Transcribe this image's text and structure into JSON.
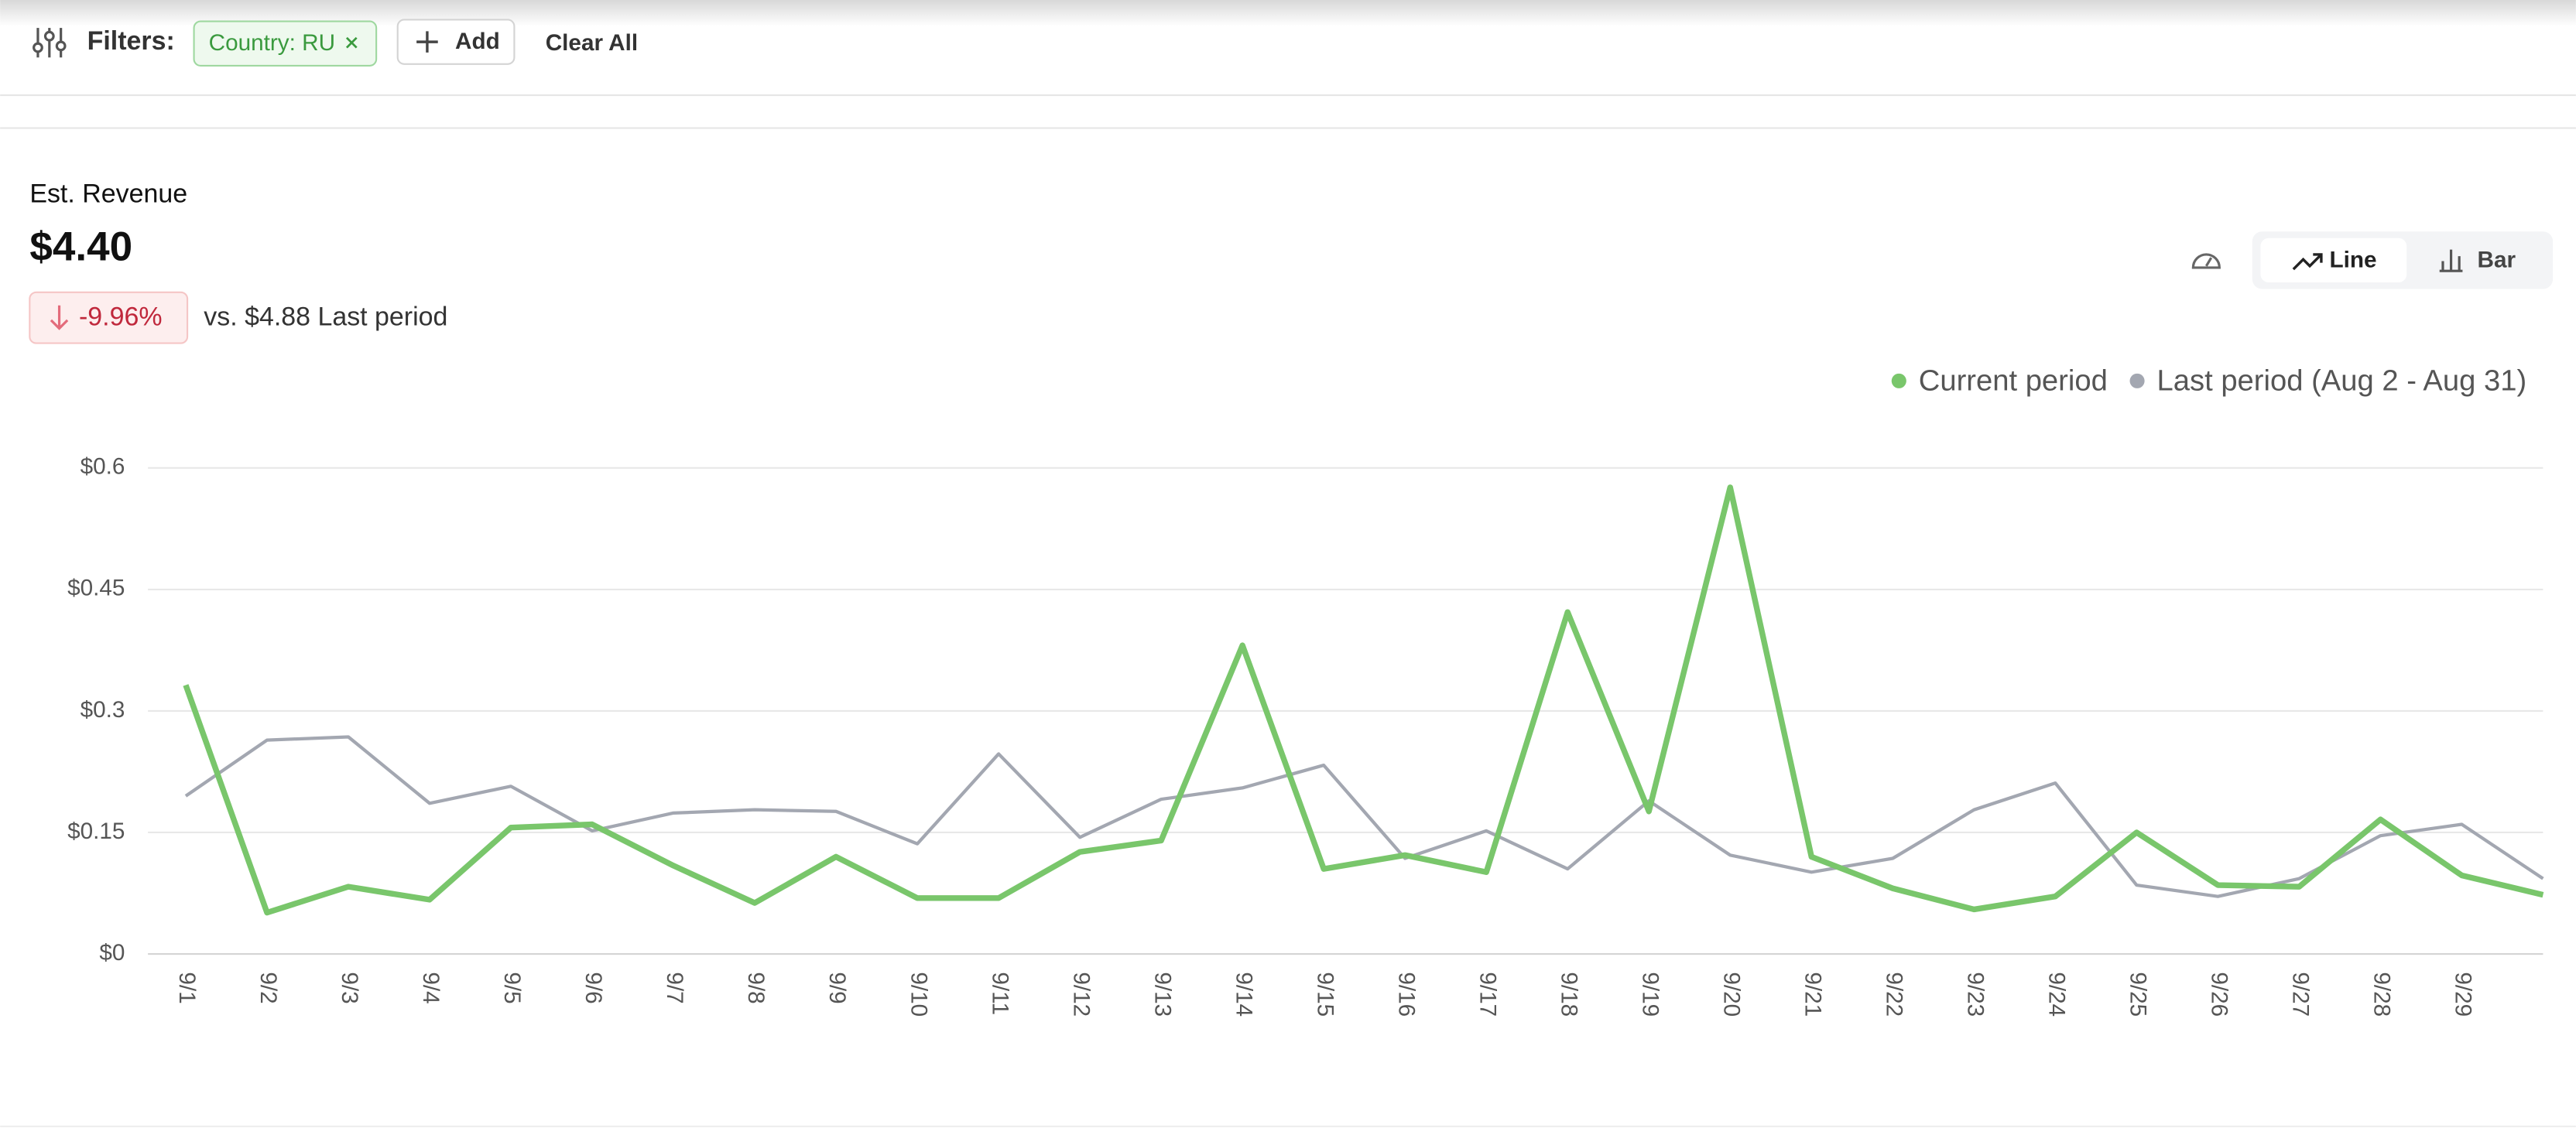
{
  "filters": {
    "label": "Filters:",
    "chips": [
      "Country: RU"
    ],
    "add": "Add",
    "clear": "Clear All"
  },
  "summary": {
    "title": "Est. Revenue",
    "value": "$4.40",
    "change": "-9.96%",
    "comparison": "vs. $4.88 Last period"
  },
  "view_toggle": {
    "options": [
      "Line",
      "Bar"
    ],
    "selected": "Line"
  },
  "chart_data": {
    "type": "line",
    "categories": [
      "9/1",
      "9/2",
      "9/3",
      "9/4",
      "9/5",
      "9/6",
      "9/7",
      "9/8",
      "9/9",
      "9/10",
      "9/11",
      "9/12",
      "9/13",
      "9/14",
      "9/15",
      "9/16",
      "9/17",
      "9/18",
      "9/19",
      "9/20",
      "9/21",
      "9/22",
      "9/23",
      "9/24",
      "9/25",
      "9/26",
      "9/27",
      "9/28",
      "9/29",
      null
    ],
    "series": [
      {
        "name": "Current period",
        "color": "#79c66b",
        "values": [
          0.332,
          0.051,
          0.083,
          0.067,
          0.156,
          0.16,
          0.109,
          0.063,
          0.12,
          0.069,
          0.069,
          0.126,
          0.14,
          0.381,
          0.105,
          0.122,
          0.101,
          0.422,
          0.176,
          0.576,
          0.12,
          0.081,
          0.055,
          0.071,
          0.15,
          0.085,
          0.083,
          0.166,
          0.097,
          0.073
        ]
      },
      {
        "name": "Last period (Aug 2 - Aug 31)",
        "color": "#a3a7b1",
        "values": [
          0.195,
          0.264,
          0.268,
          0.186,
          0.207,
          0.152,
          0.174,
          0.178,
          0.176,
          0.136,
          0.247,
          0.144,
          0.191,
          0.205,
          0.233,
          0.118,
          0.152,
          0.105,
          0.189,
          0.122,
          0.101,
          0.118,
          0.178,
          0.211,
          0.085,
          0.071,
          0.093,
          0.146,
          0.16,
          0.093
        ]
      }
    ],
    "ylim": [
      0,
      0.6
    ],
    "yticks": [
      {
        "value": 0,
        "label": "$0"
      },
      {
        "value": 0.15,
        "label": "$0.15"
      },
      {
        "value": 0.3,
        "label": "$0.3"
      },
      {
        "value": 0.45,
        "label": "$0.45"
      },
      {
        "value": 0.6,
        "label": "$0.6"
      }
    ],
    "grid": true,
    "legend": "top-right"
  }
}
